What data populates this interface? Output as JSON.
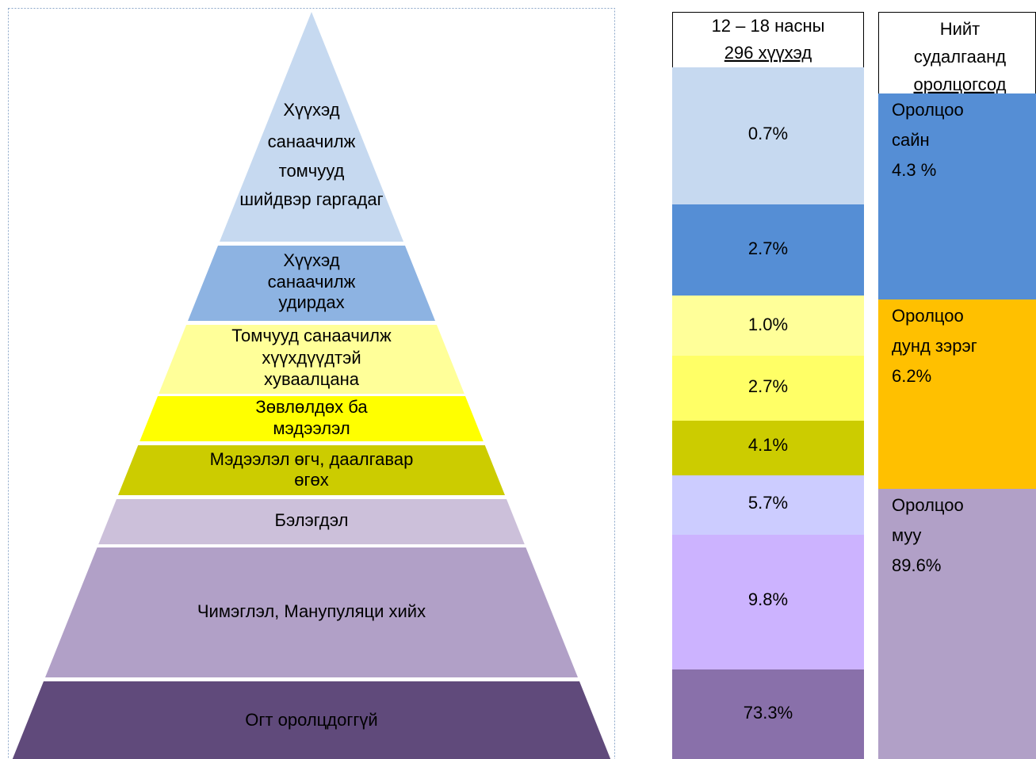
{
  "pyramid": {
    "levels": [
      {
        "lines": [
          "Хүүхэд",
          "санаачилж",
          "томчууд",
          "шийдвэр гаргадаг"
        ]
      },
      {
        "lines": [
          "Хүүхэд",
          "санаачилж",
          "удирдах"
        ]
      },
      {
        "lines": [
          "Томчууд санаачилж",
          "хүүхдүүдтэй",
          "хуваалцана"
        ]
      },
      {
        "lines": [
          "Зөвлөлдөх ба",
          "мэдээлэл"
        ]
      },
      {
        "lines": [
          "Мэдээлэл өгч, даалгавар",
          "өгөх"
        ]
      },
      {
        "lines": [
          "Бэлэгдэл"
        ]
      },
      {
        "lines": [
          "Чимэглэл, Манупуляци хийх"
        ]
      },
      {
        "lines": [
          "Огт оролцдоггүй"
        ]
      }
    ]
  },
  "column1": {
    "header": [
      "12 – 18 насны",
      "296 хүүхэд"
    ],
    "cells": [
      "0.7%",
      "2.7%",
      "1.0%",
      "2.7%",
      "4.1%",
      "5.7%",
      "9.8%",
      "73.3%"
    ]
  },
  "column2": {
    "header": [
      "Нийт",
      "судалгаанд",
      "оролцогсод"
    ],
    "cells": [
      {
        "lines": [
          "Оролцоо",
          "сайн",
          "4.3 %"
        ]
      },
      {
        "lines": [
          "Оролцоо",
          "дунд зэрэг",
          "6.2%"
        ]
      },
      {
        "lines": [
          "Оролцоо",
          "муу",
          "89.6%"
        ]
      }
    ]
  }
}
